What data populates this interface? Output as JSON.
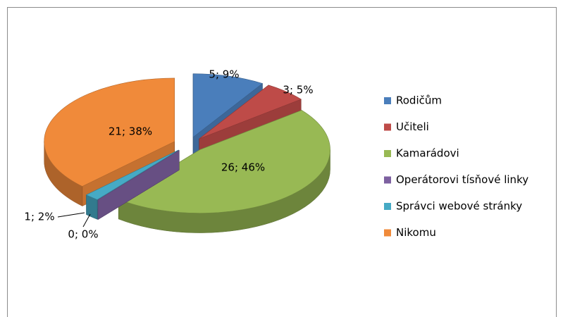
{
  "chart_data": {
    "type": "pie3d",
    "categories": [
      "Rodičům",
      "Učiteli",
      "Kamarádovi",
      "Operátorovi tísňové linky",
      "Správci webové stránky",
      "Nikomu"
    ],
    "values": [
      5,
      3,
      26,
      0,
      1,
      21
    ],
    "value_labels": [
      "5; 9%",
      "3; 5%",
      "26; 46%",
      "0; 0%",
      "1; 2%",
      "21; 38%"
    ],
    "colors": [
      "#4a7ebb",
      "#be4b48",
      "#98b954",
      "#7d60a0",
      "#46aac5",
      "#f08a3a"
    ],
    "legend": "right"
  }
}
